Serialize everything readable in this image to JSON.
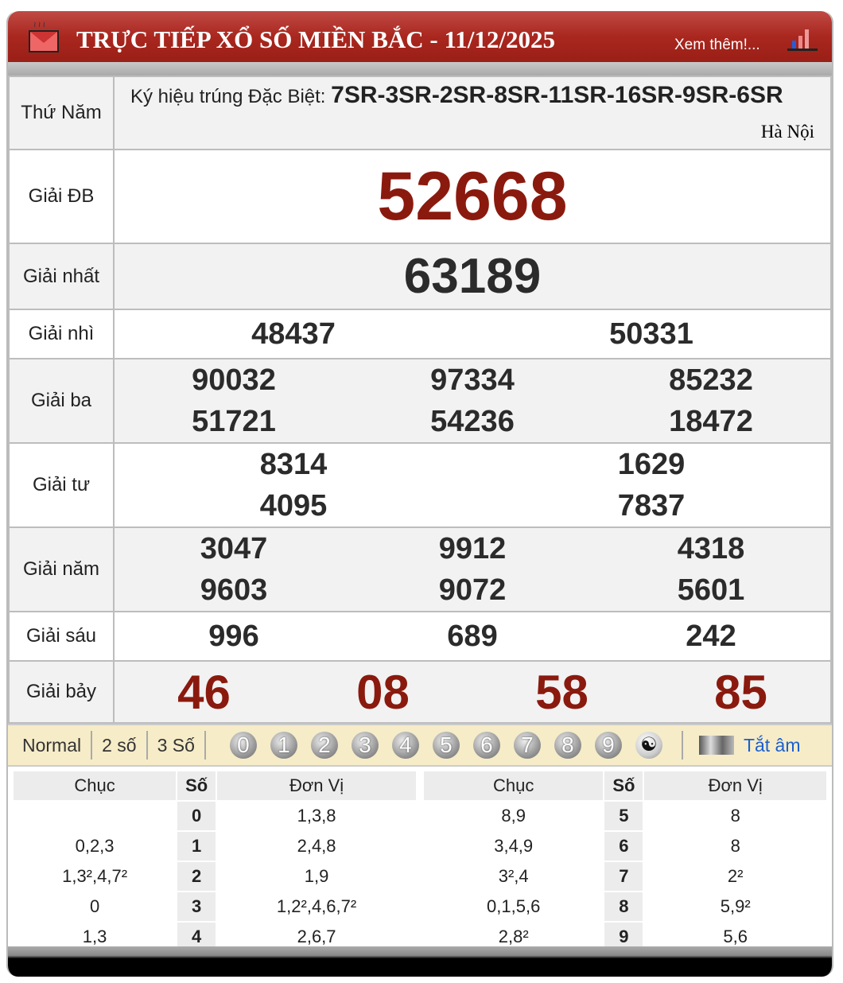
{
  "header": {
    "title": "TRỰC TIẾP XỔ SỐ MIỀN BẮC - 11/12/2025",
    "more_link": "Xem thêm!..."
  },
  "info": {
    "day": "Thứ Năm",
    "symbol_label": "Ký hiệu trúng Đặc Biệt:",
    "symbol_value": "7SR-3SR-2SR-8SR-11SR-16SR-9SR-6SR",
    "region": "Hà Nội"
  },
  "prizes": [
    {
      "label": "Giải ĐB",
      "numbers": [
        "52668"
      ]
    },
    {
      "label": "Giải nhất",
      "numbers": [
        "63189"
      ]
    },
    {
      "label": "Giải nhì",
      "numbers": [
        "48437",
        "50331"
      ]
    },
    {
      "label": "Giải ba",
      "numbers": [
        "90032",
        "97334",
        "85232",
        "51721",
        "54236",
        "18472"
      ]
    },
    {
      "label": "Giải tư",
      "numbers": [
        "8314",
        "1629",
        "4095",
        "7837"
      ]
    },
    {
      "label": "Giải năm",
      "numbers": [
        "3047",
        "9912",
        "4318",
        "9603",
        "9072",
        "5601"
      ]
    },
    {
      "label": "Giải sáu",
      "numbers": [
        "996",
        "689",
        "242"
      ]
    },
    {
      "label": "Giải bảy",
      "numbers": [
        "46",
        "08",
        "58",
        "85"
      ]
    }
  ],
  "colors": {
    "special": "#8a1a0e",
    "header_red": "#a9271f",
    "link": "#1c5fcf"
  },
  "toolbar": {
    "modes": [
      "Normal",
      "2 số",
      "3 Số"
    ],
    "digits": [
      "0",
      "1",
      "2",
      "3",
      "4",
      "5",
      "6",
      "7",
      "8",
      "9"
    ],
    "yin_yang": "☯",
    "hide_all": "Tắt âm"
  },
  "loto": {
    "headers": [
      "Chục",
      "Số",
      "Đơn Vị"
    ],
    "left": [
      [
        "",
        "0",
        "1,3,8"
      ],
      [
        "0,2,3",
        "1",
        "2,4,8"
      ],
      [
        "1,3²,4,7²",
        "2",
        "1,9"
      ],
      [
        "0",
        "3",
        "1,2²,4,6,7²"
      ],
      [
        "1,3",
        "4",
        "2,6,7"
      ]
    ],
    "right": [
      [
        "8,9",
        "5",
        "8"
      ],
      [
        "3,4,9",
        "6",
        "8"
      ],
      [
        "3²,4",
        "7",
        "2²"
      ],
      [
        "0,1,5,6",
        "8",
        "5,9²"
      ],
      [
        "2,8²",
        "9",
        "5,6"
      ]
    ]
  }
}
